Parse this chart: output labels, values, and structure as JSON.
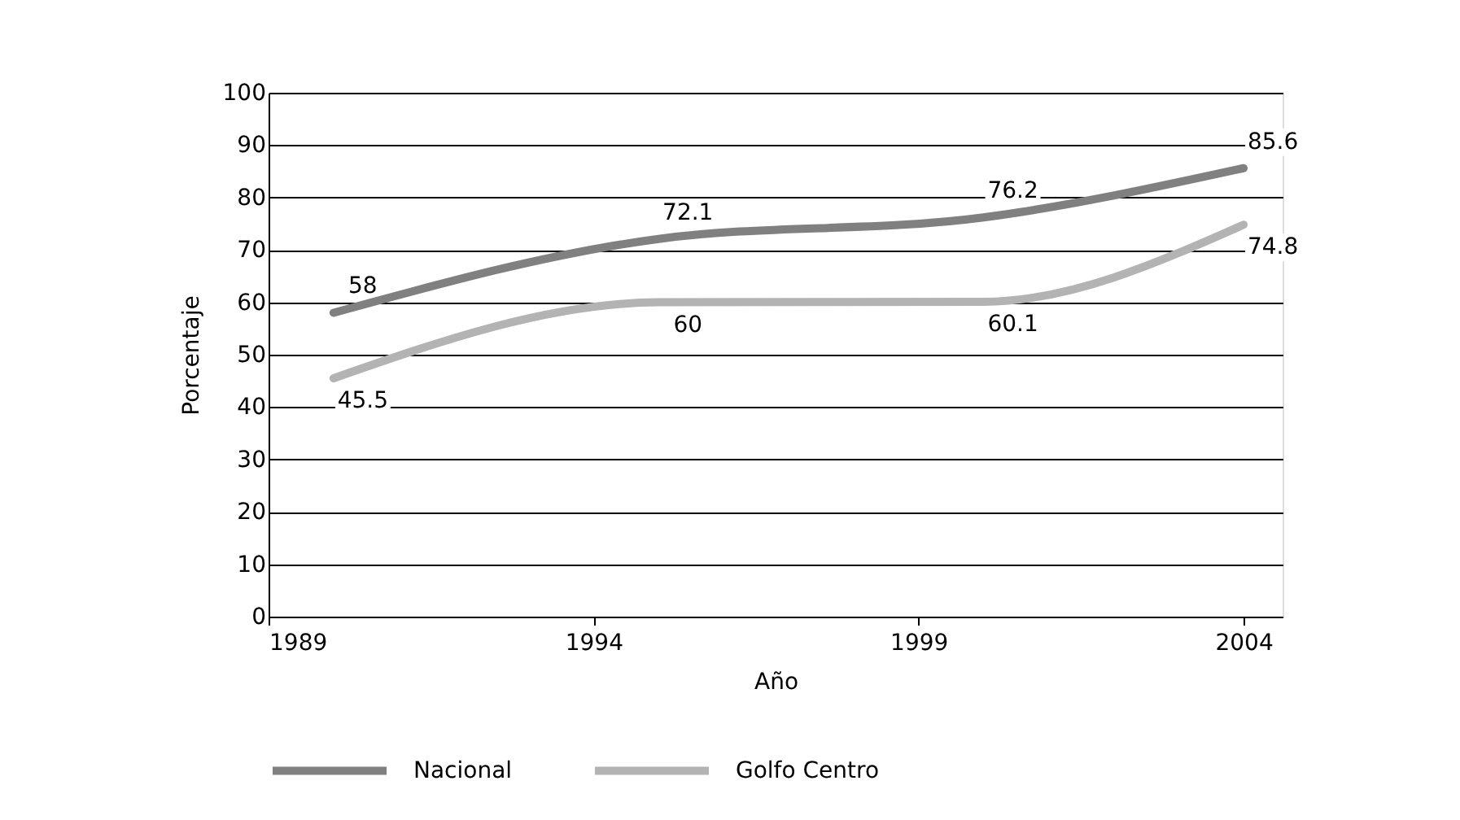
{
  "chart_data": {
    "type": "line",
    "xlabel": "Año",
    "ylabel": "Porcentaje",
    "x": [
      1990,
      1995,
      2000,
      2004
    ],
    "series": [
      {
        "name": "Nacional",
        "color": "#808080",
        "values": [
          58,
          72.1,
          76.2,
          85.6
        ]
      },
      {
        "name": "Golfo Centro",
        "color": "#b3b3b3",
        "values": [
          45.5,
          60,
          60.1,
          74.8
        ]
      }
    ],
    "xlim": [
      1989,
      2004.6
    ],
    "xticks": [
      1989,
      1994,
      1999,
      2004
    ],
    "ylim": [
      0,
      100
    ],
    "yticks": [
      0,
      10,
      20,
      30,
      40,
      50,
      60,
      70,
      80,
      90,
      100
    ],
    "grid": "y",
    "legend": "bottom",
    "data_labels": true,
    "marker": "none",
    "line_style": "solid"
  }
}
